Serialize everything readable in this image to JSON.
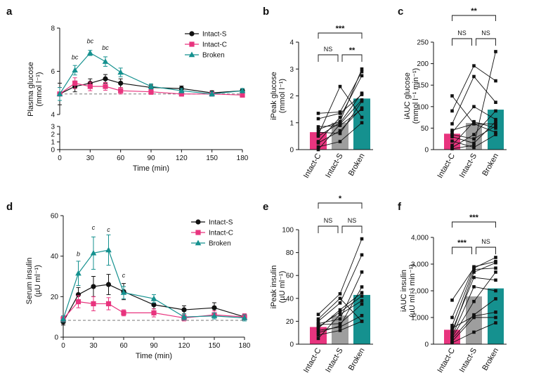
{
  "chart_data": [
    {
      "panel": "a",
      "type": "line",
      "xlabel": "Time (min)",
      "ylabel": "Plasma glucose",
      "ylabel_unit": "(mmol l⁻¹)",
      "x": [
        0,
        15,
        30,
        45,
        60,
        90,
        120,
        150,
        180
      ],
      "x_ticks": [
        "0",
        "30",
        "60",
        "90",
        "120",
        "150",
        "180"
      ],
      "y_ticks_upper": [
        "4",
        "6",
        "8"
      ],
      "y_ticks_lower": [
        "0",
        "1",
        "2",
        "3"
      ],
      "xlim": [
        0,
        180
      ],
      "ylim_upper": [
        4,
        8
      ],
      "ylim_lower": [
        0,
        3
      ],
      "baseline": 4.95,
      "legend": "top-right",
      "series": [
        {
          "name": "Intact-S",
          "color": "#111111",
          "marker": "circle",
          "values": [
            4.95,
            5.3,
            5.45,
            5.65,
            5.45,
            5.25,
            5.2,
            5.0,
            5.1
          ],
          "errors": [
            0.5,
            0.25,
            0.2,
            0.2,
            0.2,
            0.12,
            0.12,
            0.1,
            0.1
          ]
        },
        {
          "name": "Intact-C",
          "color": "#e8347e",
          "marker": "square",
          "values": [
            4.95,
            5.45,
            5.3,
            5.3,
            5.1,
            5.05,
            4.95,
            4.95,
            4.9
          ],
          "errors": [
            0.3,
            0.25,
            0.2,
            0.18,
            0.15,
            0.12,
            0.1,
            0.1,
            0.1
          ]
        },
        {
          "name": "Broken",
          "color": "#15918f",
          "marker": "triangle",
          "values": [
            4.95,
            6.05,
            6.85,
            6.45,
            5.95,
            5.3,
            5.1,
            4.95,
            5.1
          ],
          "errors": [
            0.3,
            0.22,
            0.12,
            0.22,
            0.2,
            0.12,
            0.1,
            0.1,
            0.1
          ]
        }
      ],
      "annotations": [
        {
          "x": 15,
          "y": 6.55,
          "text": "bc"
        },
        {
          "x": 30,
          "y": 7.3,
          "text": "bc"
        },
        {
          "x": 45,
          "y": 7.0,
          "text": "bc"
        }
      ]
    },
    {
      "panel": "b",
      "type": "bar",
      "ylabel": "iPeak glucose",
      "ylabel_unit": "(mmol l⁻¹)",
      "categories": [
        "Intact-C",
        "Intact-S",
        "Broken"
      ],
      "values": [
        0.65,
        1.0,
        1.9
      ],
      "colors": [
        "#e8347e",
        "#9e9e9e",
        "#15918f"
      ],
      "ylim": [
        0,
        4
      ],
      "y_ticks": [
        "0",
        "1",
        "2",
        "3",
        "4"
      ],
      "paired_points": [
        [
          0.0,
          0.95,
          1.85
        ],
        [
          0.1,
          0.3,
          1.0
        ],
        [
          0.25,
          0.7,
          1.55
        ],
        [
          0.5,
          1.0,
          2.1
        ],
        [
          0.65,
          0.6,
          1.8
        ],
        [
          0.85,
          0.9,
          1.5
        ],
        [
          1.15,
          1.35,
          2.05
        ],
        [
          1.35,
          1.4,
          2.9
        ],
        [
          0.55,
          2.35,
          1.2
        ],
        [
          0.75,
          1.05,
          3.0
        ],
        [
          0.3,
          1.2,
          2.75
        ]
      ],
      "significance": [
        {
          "from": 0,
          "to": 1,
          "label": "NS",
          "level": 1
        },
        {
          "from": 1,
          "to": 2,
          "label": "**",
          "level": 1
        },
        {
          "from": 0,
          "to": 2,
          "label": "***",
          "level": 2
        }
      ]
    },
    {
      "panel": "c",
      "type": "bar",
      "ylabel": "iAUC glucose",
      "ylabel_unit": "(mmol l⁻¹ min⁻¹)",
      "categories": [
        "Intact-C",
        "Intact-S",
        "Broken"
      ],
      "values": [
        37,
        62,
        93
      ],
      "colors": [
        "#e8347e",
        "#9e9e9e",
        "#15918f"
      ],
      "ylim": [
        0,
        250
      ],
      "y_ticks": [
        "0",
        "50",
        "100",
        "150",
        "200",
        "250"
      ],
      "paired_points": [
        [
          125,
          60,
          40
        ],
        [
          90,
          195,
          160
        ],
        [
          60,
          170,
          110
        ],
        [
          40,
          100,
          70
        ],
        [
          35,
          25,
          55
        ],
        [
          30,
          15,
          65
        ],
        [
          20,
          5,
          35
        ],
        [
          10,
          65,
          50
        ],
        [
          5,
          35,
          90
        ],
        [
          2,
          10,
          228
        ],
        [
          45,
          60,
          60
        ]
      ],
      "significance": [
        {
          "from": 0,
          "to": 1,
          "label": "NS",
          "level": 1
        },
        {
          "from": 1,
          "to": 2,
          "label": "NS",
          "level": 1
        },
        {
          "from": 0,
          "to": 2,
          "label": "**",
          "level": 2
        }
      ]
    },
    {
      "panel": "d",
      "type": "line",
      "xlabel": "Time (min)",
      "ylabel": "Serum insulin",
      "ylabel_unit": "(µU ml⁻¹)",
      "x": [
        0,
        15,
        30,
        45,
        60,
        90,
        120,
        150,
        180
      ],
      "x_ticks": [
        "0",
        "30",
        "60",
        "90",
        "120",
        "150",
        "180"
      ],
      "y_ticks": [
        "0",
        "20",
        "40",
        "60"
      ],
      "xlim": [
        0,
        180
      ],
      "ylim": [
        0,
        60
      ],
      "baseline": 8.3,
      "legend": "top-right",
      "series": [
        {
          "name": "Intact-S",
          "color": "#111111",
          "marker": "circle",
          "values": [
            7.5,
            21,
            25,
            26,
            22.5,
            16,
            13.5,
            14.5,
            10
          ],
          "errors": [
            1.5,
            3.5,
            5,
            5,
            4,
            2,
            2,
            2.5,
            1.5
          ]
        },
        {
          "name": "Intact-C",
          "color": "#e8347e",
          "marker": "square",
          "values": [
            9,
            17.5,
            16.5,
            16.5,
            12,
            12,
            9.5,
            11,
            10
          ],
          "errors": [
            1.5,
            3,
            3.5,
            3,
            1.5,
            2,
            1.5,
            2,
            1.5
          ]
        },
        {
          "name": "Broken",
          "color": "#15918f",
          "marker": "triangle",
          "values": [
            9,
            31.5,
            41.5,
            43,
            22,
            19,
            10,
            10.5,
            9.5
          ],
          "errors": [
            1.5,
            6,
            8,
            7.5,
            3,
            2,
            1.5,
            1.5,
            1.5
          ]
        }
      ],
      "annotations": [
        {
          "x": 15,
          "y": 40,
          "text": "b"
        },
        {
          "x": 30,
          "y": 53,
          "text": "c"
        },
        {
          "x": 45,
          "y": 52,
          "text": "c"
        },
        {
          "x": 60,
          "y": 29.5,
          "text": "c"
        }
      ]
    },
    {
      "panel": "e",
      "type": "bar",
      "ylabel": "iPeak insulin",
      "ylabel_unit": "(µU ml⁻¹)",
      "categories": [
        "Intact-C",
        "Intact-S",
        "Broken"
      ],
      "values": [
        15,
        25,
        43
      ],
      "colors": [
        "#e8347e",
        "#9e9e9e",
        "#15918f"
      ],
      "ylim": [
        0,
        100
      ],
      "y_ticks": [
        "0",
        "20",
        "40",
        "60",
        "80",
        "100"
      ],
      "paired_points": [
        [
          26,
          44,
          92
        ],
        [
          20,
          36,
          78
        ],
        [
          18,
          22,
          63
        ],
        [
          15,
          28,
          42
        ],
        [
          12,
          15,
          25
        ],
        [
          8,
          12,
          20
        ],
        [
          5,
          26,
          38
        ],
        [
          14,
          30,
          45
        ],
        [
          10,
          16,
          50
        ],
        [
          22,
          40,
          20
        ],
        [
          17,
          18,
          35
        ]
      ],
      "significance": [
        {
          "from": 0,
          "to": 1,
          "label": "NS",
          "level": 1
        },
        {
          "from": 1,
          "to": 2,
          "label": "NS",
          "level": 1
        },
        {
          "from": 0,
          "to": 2,
          "label": "*",
          "level": 2
        }
      ]
    },
    {
      "panel": "f",
      "type": "bar",
      "ylabel": "iAUC insulin",
      "ylabel_unit": "(µU ml⁻¹ min⁻¹)",
      "categories": [
        "Intact-C",
        "Intact-S",
        "Broken"
      ],
      "values": [
        540,
        1790,
        2090
      ],
      "colors": [
        "#e8347e",
        "#9e9e9e",
        "#15918f"
      ],
      "ylim": [
        0,
        4000
      ],
      "y_ticks": [
        "0",
        "1,000",
        "2,000",
        "3,000",
        "4,000"
      ],
      "paired_points": [
        [
          1650,
          2850,
          3250
        ],
        [
          1000,
          2900,
          3100
        ],
        [
          700,
          2800,
          2850
        ],
        [
          500,
          2500,
          2400
        ],
        [
          300,
          2150,
          2000
        ],
        [
          200,
          1100,
          1700
        ],
        [
          100,
          1000,
          1000
        ],
        [
          50,
          450,
          800
        ],
        [
          600,
          1050,
          1200
        ],
        [
          400,
          2700,
          3050
        ],
        [
          250,
          1600,
          2700
        ]
      ],
      "significance": [
        {
          "from": 0,
          "to": 1,
          "label": "***",
          "level": 1
        },
        {
          "from": 1,
          "to": 2,
          "label": "NS",
          "level": 1
        },
        {
          "from": 0,
          "to": 2,
          "label": "***",
          "level": 2
        }
      ]
    }
  ]
}
